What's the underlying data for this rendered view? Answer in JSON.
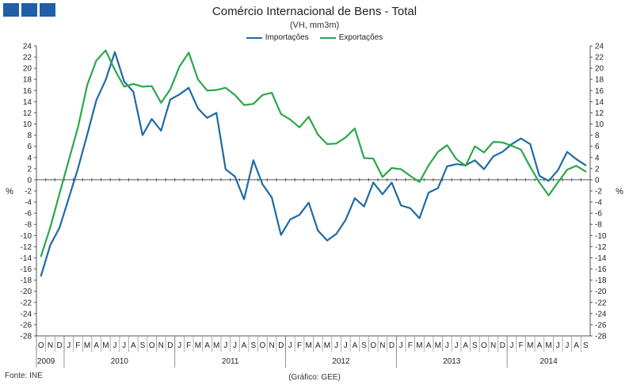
{
  "chart_data": {
    "type": "line",
    "title": "Comércio Internacional de Bens - Total",
    "subtitle": "(VH, mm3m)",
    "ylabel_left": "%",
    "ylabel_right": "%",
    "ylim": [
      -28,
      24
    ],
    "yticks": [
      24,
      22,
      20,
      18,
      16,
      14,
      12,
      10,
      8,
      6,
      4,
      2,
      0,
      -2,
      -4,
      -6,
      -8,
      -10,
      -12,
      -14,
      -16,
      -18,
      -20,
      -22,
      -24,
      -26,
      -28
    ],
    "grid": false,
    "legend_position": "top-center",
    "month_labels": [
      "O",
      "N",
      "D",
      "J",
      "F",
      "M",
      "A",
      "M",
      "J",
      "J",
      "A",
      "S",
      "O",
      "N",
      "D",
      "J",
      "F",
      "M",
      "A",
      "M",
      "J",
      "J",
      "A",
      "S",
      "O",
      "N",
      "D",
      "J",
      "F",
      "M",
      "A",
      "M",
      "J",
      "J",
      "A",
      "S",
      "O",
      "N",
      "D",
      "J",
      "F",
      "M",
      "A",
      "M",
      "J",
      "J",
      "A",
      "S",
      "O",
      "N",
      "D",
      "J",
      "F",
      "M",
      "A",
      "M",
      "J",
      "J",
      "A",
      "S"
    ],
    "year_labels": [
      {
        "label": "2009",
        "start": 0,
        "count": 3
      },
      {
        "label": "2010",
        "start": 3,
        "count": 12
      },
      {
        "label": "2011",
        "start": 15,
        "count": 12
      },
      {
        "label": "2012",
        "start": 27,
        "count": 12
      },
      {
        "label": "2013",
        "start": 39,
        "count": 12
      },
      {
        "label": "2014",
        "start": 51,
        "count": 9
      }
    ],
    "series": [
      {
        "name": "Importações",
        "color": "#1f6aa5",
        "values": [
          -17.2,
          -11.7,
          -8.6,
          -3.3,
          2.0,
          8.1,
          14.3,
          17.9,
          22.9,
          17.6,
          15.8,
          8.0,
          10.9,
          8.8,
          14.4,
          15.3,
          16.5,
          12.8,
          11.1,
          12.0,
          1.9,
          0.6,
          -3.5,
          3.5,
          -0.8,
          -3.2,
          -9.9,
          -7.1,
          -6.3,
          -4.1,
          -9.1,
          -10.9,
          -9.7,
          -7.2,
          -3.3,
          -4.8,
          -0.5,
          -2.6,
          -0.5,
          -4.6,
          -5.1,
          -6.9,
          -2.3,
          -1.5,
          2.4,
          2.8,
          2.6,
          3.5,
          1.9,
          4.2,
          5.0,
          6.4,
          7.4,
          6.4,
          0.7,
          -0.2,
          1.7,
          5.0,
          3.7,
          2.6
        ]
      },
      {
        "name": "Exportações",
        "color": "#2aa84a",
        "values": [
          -13.7,
          -8.5,
          -2.5,
          3.5,
          9.4,
          17.0,
          21.4,
          23.2,
          19.7,
          16.7,
          17.2,
          16.7,
          16.8,
          13.8,
          16.2,
          20.3,
          22.8,
          18.0,
          16.0,
          16.1,
          16.5,
          15.2,
          13.4,
          13.6,
          15.2,
          15.6,
          11.8,
          10.8,
          9.4,
          11.3,
          8.1,
          6.4,
          6.5,
          7.6,
          9.2,
          3.9,
          3.8,
          0.5,
          2.1,
          1.9,
          0.7,
          -0.4,
          2.6,
          5.0,
          6.2,
          3.7,
          2.5,
          6.0,
          4.9,
          6.8,
          6.7,
          6.1,
          5.4,
          2.3,
          -0.5,
          -2.8,
          -0.5,
          1.8,
          2.5,
          1.5
        ]
      }
    ]
  },
  "header": {
    "source": "Fonte: INE",
    "credit": "(Gráfico: GEE)"
  },
  "colors": {
    "logo": "#1f5ea8",
    "axis": "#555555"
  }
}
